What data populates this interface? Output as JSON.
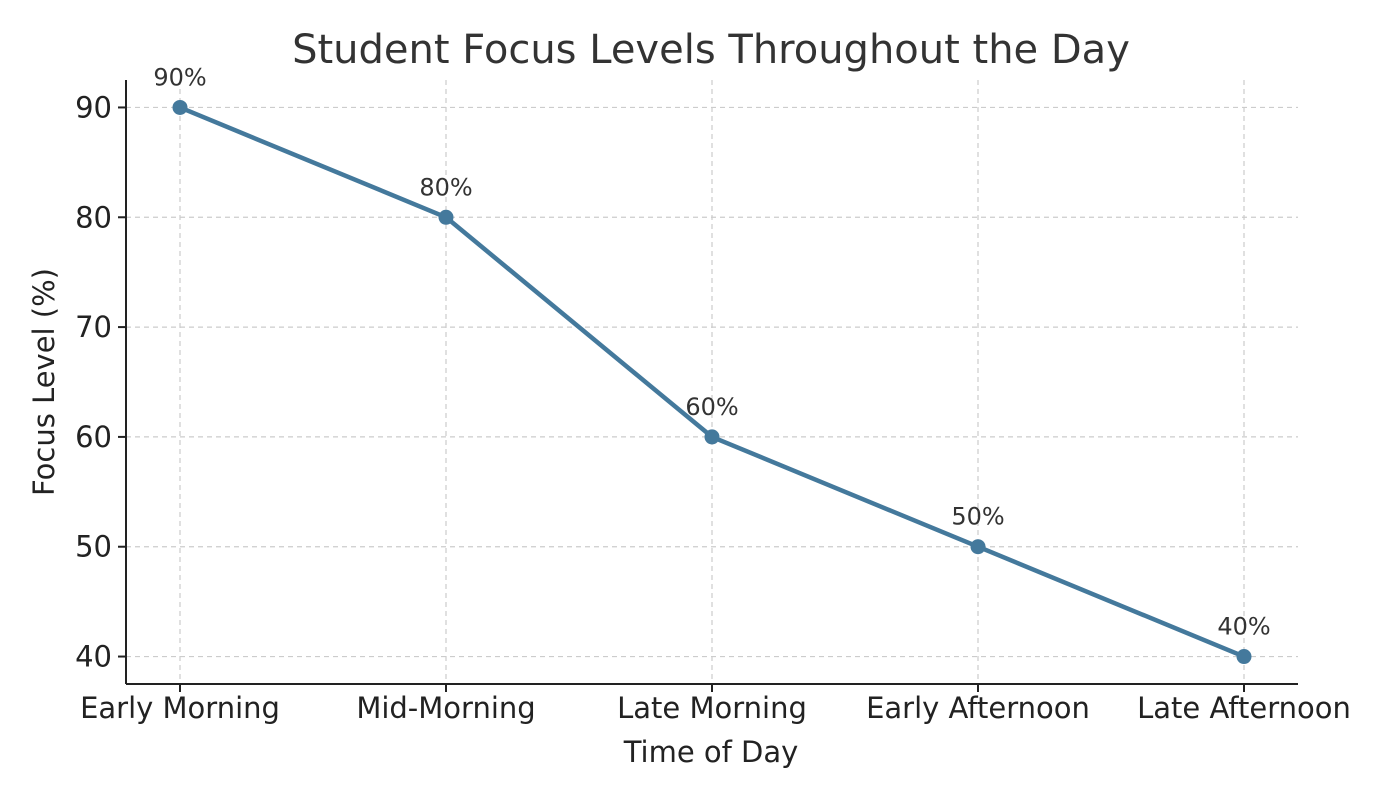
{
  "chart_data": {
    "type": "line",
    "title": "Student Focus Levels Throughout the Day",
    "xlabel": "Time of Day",
    "ylabel": "Focus Level (%)",
    "categories": [
      "Early Morning",
      "Mid-Morning",
      "Late Morning",
      "Early Afternoon",
      "Late Afternoon"
    ],
    "series": [
      {
        "values": [
          90,
          80,
          60,
          50,
          40
        ],
        "color": "#44799c"
      }
    ],
    "data_labels": [
      "90%",
      "80%",
      "60%",
      "50%",
      "40%"
    ],
    "yticks": [
      40,
      50,
      60,
      70,
      80,
      90
    ],
    "ylim": [
      37.5,
      92.5
    ],
    "grid": true,
    "marker": "circle"
  }
}
